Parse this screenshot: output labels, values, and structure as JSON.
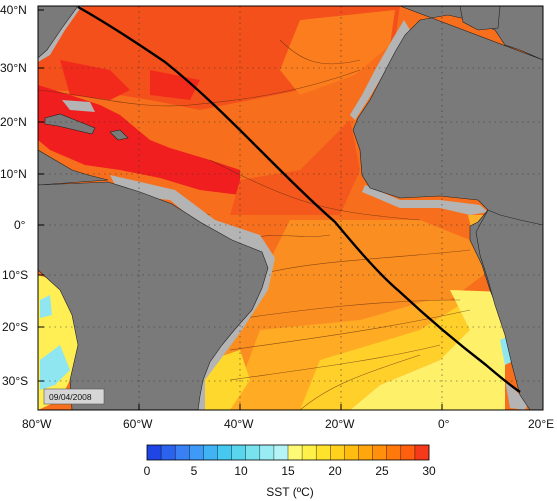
{
  "map": {
    "date_label": "09/04/2008",
    "lat_labels": [
      "40°N",
      "30°N",
      "20°N",
      "10°N",
      "0°",
      "10°S",
      "20°S",
      "30°S"
    ],
    "lon_labels": [
      "80°W",
      "60°W",
      "40°W",
      "20°W",
      "0°",
      "20°E"
    ]
  },
  "colorbar": {
    "title": "SST (ºC)",
    "ticks": [
      "0",
      "5",
      "10",
      "15",
      "20",
      "25",
      "30"
    ],
    "colors": [
      "#1f45e6",
      "#2b63ee",
      "#3a80f5",
      "#3e9af6",
      "#3fb3f3",
      "#45c9f0",
      "#59d6ee",
      "#78e2ef",
      "#98ecf3",
      "#b5f3f6",
      "#fffa75",
      "#fff04a",
      "#ffe22c",
      "#ffd11d",
      "#ffbd12",
      "#ffa60d",
      "#ff8f0c",
      "#ff780c",
      "#ff5f0f",
      "#f6391a"
    ]
  },
  "colors": {
    "land": "#7a7a7a",
    "shelf": "#b4b4b4",
    "track": "#000000"
  }
}
